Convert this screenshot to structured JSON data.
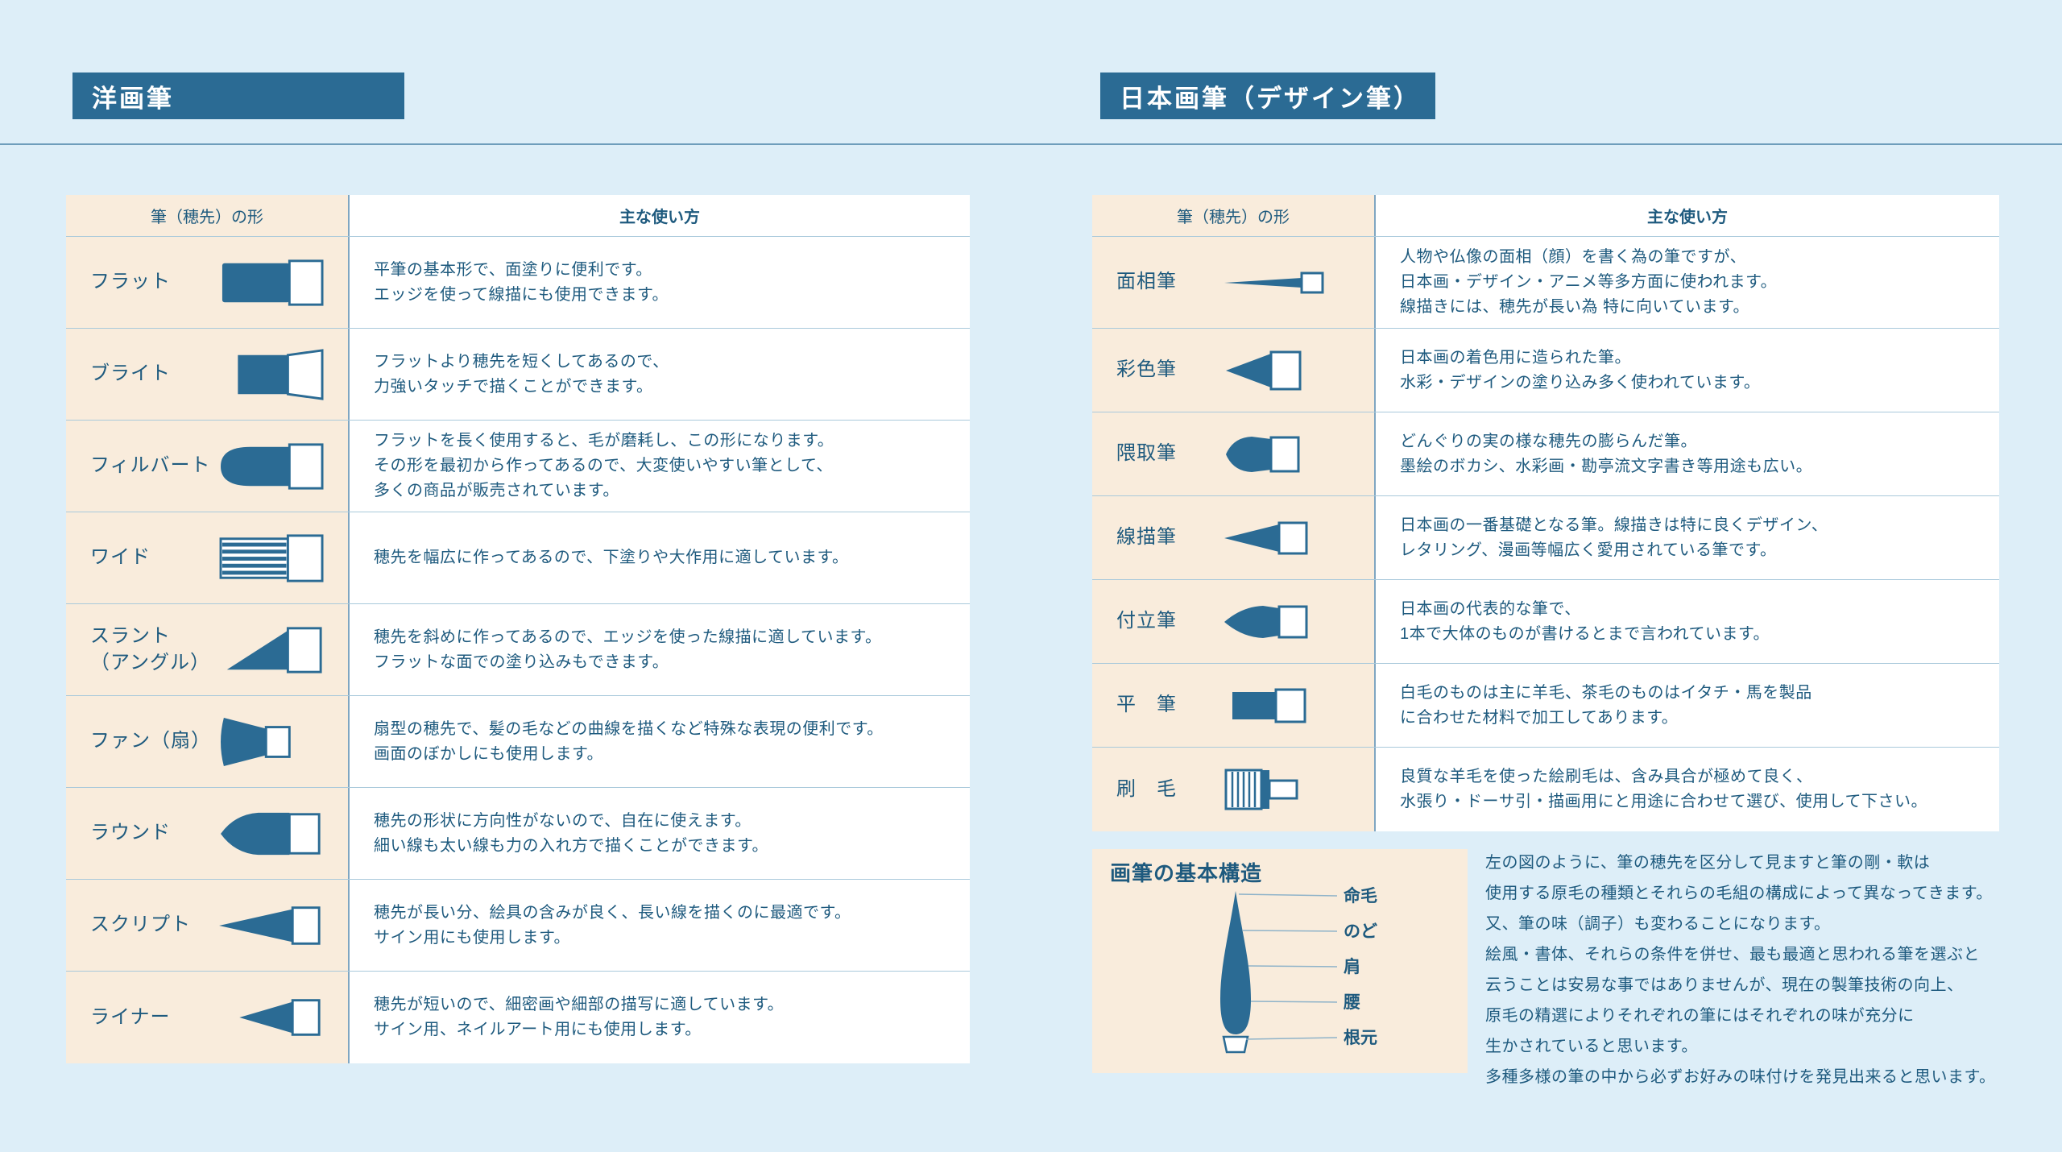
{
  "colors": {
    "page_bg": "#ddeef8",
    "accent": "#2b6b94",
    "panel_bg": "#f9ecdc",
    "text": "#1e5a7e"
  },
  "western_section": {
    "header": "洋画筆",
    "table": {
      "shape_header": "筆（穂先）の形",
      "usage_header": "主な使い方",
      "rows": [
        {
          "name": "フラット",
          "icon": "flat",
          "desc": [
            "平筆の基本形で、面塗りに便利です。",
            "エッジを使って線描にも使用できます。"
          ]
        },
        {
          "name": "ブライト",
          "icon": "bright",
          "desc": [
            "フラットより穂先を短くしてあるので、",
            "力強いタッチで描くことができます。"
          ]
        },
        {
          "name": "フィルバート",
          "icon": "filbert",
          "desc": [
            "フラットを長く使用すると、毛が磨耗し、この形になります。",
            "その形を最初から作ってあるので、大変使いやすい筆として、",
            "多くの商品が販売されています。"
          ]
        },
        {
          "name": "ワイド",
          "icon": "wide",
          "desc": [
            "穂先を幅広に作ってあるので、下塗りや大作用に適しています。"
          ]
        },
        {
          "name": "スラント\n（アングル）",
          "icon": "slant",
          "desc": [
            "穂先を斜めに作ってあるので、エッジを使った線描に適しています。",
            "フラットな面での塗り込みもできます。"
          ]
        },
        {
          "name": "ファン（扇）",
          "icon": "fan",
          "desc": [
            "扇型の穂先で、髪の毛などの曲線を描くなど特殊な表現の便利です。",
            "画面のぼかしにも使用します。"
          ]
        },
        {
          "name": "ラウンド",
          "icon": "round",
          "desc": [
            "穂先の形状に方向性がないので、自在に使えます。",
            "細い線も太い線も力の入れ方で描くことができます。"
          ]
        },
        {
          "name": "スクリプト",
          "icon": "script",
          "desc": [
            "穂先が長い分、絵具の含みが良く、長い線を描くのに最適です。",
            "サイン用にも使用します。"
          ]
        },
        {
          "name": "ライナー",
          "icon": "liner",
          "desc": [
            "穂先が短いので、細密画や細部の描写に適しています。",
            "サイン用、ネイルアート用にも使用します。"
          ]
        }
      ]
    }
  },
  "japanese_section": {
    "header": "日本画筆（デザイン筆）",
    "table": {
      "shape_header": "筆（穂先）の形",
      "usage_header": "主な使い方",
      "rows": [
        {
          "name": "面相筆",
          "icon": "mensou",
          "desc": [
            "人物や仏像の面相（顔）を書く為の筆ですが、",
            "日本画・デザイン・アニメ等多方面に使われます。",
            "線描きには、穂先が長い為 特に向いています。"
          ]
        },
        {
          "name": "彩色筆",
          "icon": "saishiki",
          "desc": [
            "日本画の着色用に造られた筆。",
            "水彩・デザインの塗り込み多く使われています。"
          ]
        },
        {
          "name": "隈取筆",
          "icon": "kumadori",
          "desc": [
            "どんぐりの実の様な穂先の膨らんだ筆。",
            "墨絵のボカシ、水彩画・勘亭流文字書き等用途も広い。"
          ]
        },
        {
          "name": "線描筆",
          "icon": "senbyou",
          "desc": [
            "日本画の一番基礎となる筆。線描きは特に良くデザイン、",
            "レタリング、漫画等幅広く愛用されている筆です。"
          ]
        },
        {
          "name": "付立筆",
          "icon": "tsuketate",
          "desc": [
            "日本画の代表的な筆で、",
            "1本で大体のものが書けるとまで言われています。"
          ]
        },
        {
          "name": "平　筆",
          "icon": "hira",
          "desc": [
            "白毛のものは主に羊毛、茶毛のものはイタチ・馬を製品",
            "に合わせた材料で加工してあります。"
          ]
        },
        {
          "name": "刷　毛",
          "icon": "hake",
          "desc": [
            "良質な羊毛を使った絵刷毛は、含み具合が極めて良く、",
            "水張り・ドーサ引・描画用にと用途に合わせて選び、使用して下さい。"
          ]
        }
      ]
    }
  },
  "structure": {
    "title": "画筆の基本構造",
    "labels": [
      "命毛",
      "のど",
      "肩",
      "腰",
      "根元"
    ],
    "paragraph": [
      "左の図のように、筆の穂先を区分して見ますと筆の剛・軟は",
      "使用する原毛の種類とそれらの毛組の構成によって異なってきます。",
      "又、筆の味（調子）も変わることになります。",
      "絵風・書体、それらの条件を併せ、最も最適と思われる筆を選ぶと",
      "云うことは安易な事ではありませんが、現在の製筆技術の向上、",
      "原毛の精選によりそれぞれの筆にはそれぞれの味が充分に",
      "生かされていると思います。",
      "多種多様の筆の中から必ずお好みの味付けを発見出来ると思います。"
    ]
  }
}
